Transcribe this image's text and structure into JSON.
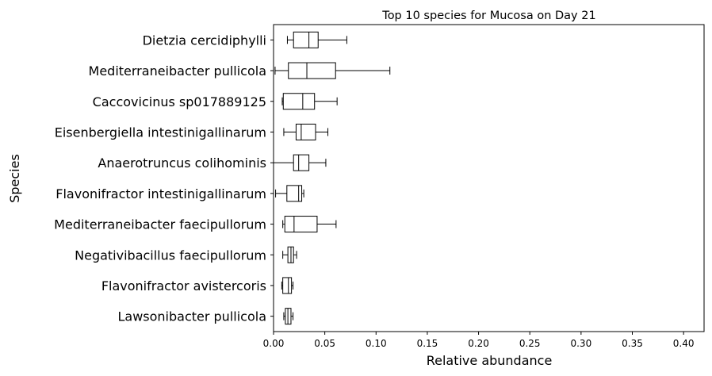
{
  "chart_data": {
    "type": "boxplot",
    "orientation": "horizontal",
    "title": "Top 10 species for Mucosa on Day 21",
    "xlabel": "Relative abundance",
    "ylabel": "Species",
    "xlim": [
      0.0,
      0.42
    ],
    "xticks": [
      0.0,
      0.05,
      0.1,
      0.15,
      0.2,
      0.25,
      0.3,
      0.35,
      0.4
    ],
    "xtick_labels": [
      "0.00",
      "0.05",
      "0.10",
      "0.15",
      "0.20",
      "0.25",
      "0.30",
      "0.35",
      "0.40"
    ],
    "grid": false,
    "categories": [
      "Dietzia cercidiphylli",
      "Mediterraneibacter pullicola",
      "Caccovicinus sp017889125",
      "Eisenbergiella intestinigallinarum",
      "Anaerotruncus colihominis",
      "Flavonifractor intestinigallinarum",
      "Mediterraneibacter faecipullorum",
      "Negativibacillus faecipullorum",
      "Flavonifractor avistercoris",
      "Lawsonibacter pullicola"
    ],
    "boxes": [
      {
        "whisker_low": 0.0135,
        "q1": 0.0195,
        "median": 0.0345,
        "q3": 0.0435,
        "whisker_high": 0.0715
      },
      {
        "whisker_low": 0.0015,
        "q1": 0.0145,
        "median": 0.0325,
        "q3": 0.0605,
        "whisker_high": 0.1135
      },
      {
        "whisker_low": 0.0085,
        "q1": 0.0095,
        "median": 0.0285,
        "q3": 0.04,
        "whisker_high": 0.062
      },
      {
        "whisker_low": 0.01,
        "q1": 0.022,
        "median": 0.027,
        "q3": 0.041,
        "whisker_high": 0.053
      },
      {
        "whisker_low": 0.0,
        "q1": 0.0195,
        "median": 0.0245,
        "q3": 0.0345,
        "whisker_high": 0.051
      },
      {
        "whisker_low": 0.002,
        "q1": 0.013,
        "median": 0.0245,
        "q3": 0.0275,
        "whisker_high": 0.0295
      },
      {
        "whisker_low": 0.009,
        "q1": 0.011,
        "median": 0.02,
        "q3": 0.0425,
        "whisker_high": 0.061
      },
      {
        "whisker_low": 0.009,
        "q1": 0.014,
        "median": 0.017,
        "q3": 0.0195,
        "whisker_high": 0.0225
      },
      {
        "whisker_low": 0.008,
        "q1": 0.009,
        "median": 0.0145,
        "q3": 0.0175,
        "whisker_high": 0.019
      },
      {
        "whisker_low": 0.01,
        "q1": 0.0115,
        "median": 0.014,
        "q3": 0.017,
        "whisker_high": 0.019
      }
    ],
    "colors": {
      "box_edge": "#000000",
      "box_fill": "#ffffff",
      "axes": "#000000"
    }
  }
}
